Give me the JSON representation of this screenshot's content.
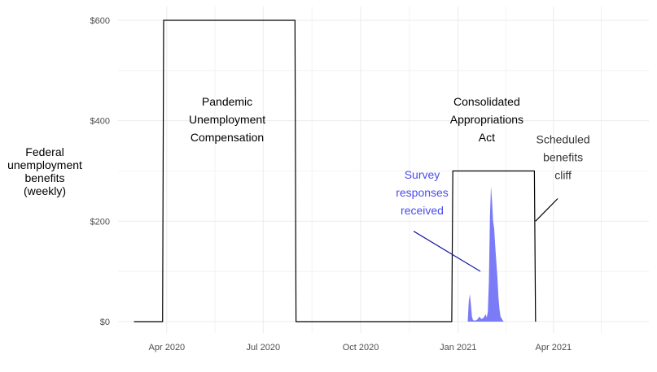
{
  "chart_data": {
    "type": "line",
    "title": "",
    "ylabel_lines": [
      "Federal",
      "unemployment",
      "benefits",
      "(weekly)"
    ],
    "xlabel": "",
    "ylim": [
      0,
      600
    ],
    "y_ticks": [
      {
        "value": 0,
        "label": "$0"
      },
      {
        "value": 200,
        "label": "$200"
      },
      {
        "value": 400,
        "label": "$400"
      },
      {
        "value": 600,
        "label": "$600"
      }
    ],
    "x_range": [
      "2020-02-15",
      "2021-06-30"
    ],
    "x_ticks": [
      {
        "date": "2020-04-01",
        "label": "Apr 2020"
      },
      {
        "date": "2020-07-01",
        "label": "Jul 2020"
      },
      {
        "date": "2020-10-01",
        "label": "Oct 2020"
      },
      {
        "date": "2021-01-01",
        "label": "Jan 2021"
      },
      {
        "date": "2021-04-01",
        "label": "Apr 2021"
      }
    ],
    "benefit_series": [
      {
        "date": "2020-03-01",
        "value": 0
      },
      {
        "date": "2020-03-28",
        "value": 0
      },
      {
        "date": "2020-03-29",
        "value": 600
      },
      {
        "date": "2020-07-31",
        "value": 600
      },
      {
        "date": "2020-08-01",
        "value": 0
      },
      {
        "date": "2020-12-26",
        "value": 0
      },
      {
        "date": "2020-12-27",
        "value": 300
      },
      {
        "date": "2021-03-14",
        "value": 300
      },
      {
        "date": "2021-03-15",
        "value": 0
      }
    ],
    "survey_responses": [
      {
        "date": "2021-01-10",
        "value": 0
      },
      {
        "date": "2021-01-11",
        "value": 40
      },
      {
        "date": "2021-01-12",
        "value": 55
      },
      {
        "date": "2021-01-13",
        "value": 35
      },
      {
        "date": "2021-01-14",
        "value": 10
      },
      {
        "date": "2021-01-15",
        "value": 3
      },
      {
        "date": "2021-01-17",
        "value": 2
      },
      {
        "date": "2021-01-19",
        "value": 4
      },
      {
        "date": "2021-01-21",
        "value": 10
      },
      {
        "date": "2021-01-23",
        "value": 5
      },
      {
        "date": "2021-01-25",
        "value": 8
      },
      {
        "date": "2021-01-27",
        "value": 15
      },
      {
        "date": "2021-01-28",
        "value": 8
      },
      {
        "date": "2021-01-29",
        "value": 20
      },
      {
        "date": "2021-01-30",
        "value": 80
      },
      {
        "date": "2021-01-31",
        "value": 210
      },
      {
        "date": "2021-02-01",
        "value": 270
      },
      {
        "date": "2021-02-02",
        "value": 240
      },
      {
        "date": "2021-02-03",
        "value": 200
      },
      {
        "date": "2021-02-04",
        "value": 185
      },
      {
        "date": "2021-02-05",
        "value": 150
      },
      {
        "date": "2021-02-06",
        "value": 120
      },
      {
        "date": "2021-02-07",
        "value": 90
      },
      {
        "date": "2021-02-08",
        "value": 50
      },
      {
        "date": "2021-02-09",
        "value": 25
      },
      {
        "date": "2021-02-10",
        "value": 10
      },
      {
        "date": "2021-02-12",
        "value": 3
      },
      {
        "date": "2021-02-13",
        "value": 0
      }
    ],
    "annotations": [
      {
        "lines": [
          "Pandemic",
          "Unemployment",
          "Compensation"
        ],
        "date": "2020-05-28",
        "value": 430,
        "color": "#000000"
      },
      {
        "lines": [
          "Consolidated",
          "Appropriations",
          "Act"
        ],
        "date": "2021-01-28",
        "value": 430,
        "color": "#000000"
      },
      {
        "lines": [
          "Scheduled",
          "benefits",
          "cliff"
        ],
        "date": "2021-04-10",
        "value": 355,
        "color": "#333333",
        "arrow_from": {
          "date": "2021-04-05",
          "value": 245
        },
        "arrow_to": {
          "date": "2021-03-15",
          "value": 200
        }
      },
      {
        "lines": [
          "Survey",
          "responses",
          "received"
        ],
        "date": "2020-11-28",
        "value": 285,
        "color": "#4b4bf0",
        "arrow_from": {
          "date": "2020-11-20",
          "value": 180
        },
        "arrow_to": {
          "date": "2021-01-22",
          "value": 100
        }
      }
    ],
    "colors": {
      "benefit_line": "#000000",
      "survey_fill": "#7b7bf7",
      "survey_text": "#4b4bf0",
      "grid": "#ebebeb"
    },
    "grid": true,
    "legend": "none"
  }
}
